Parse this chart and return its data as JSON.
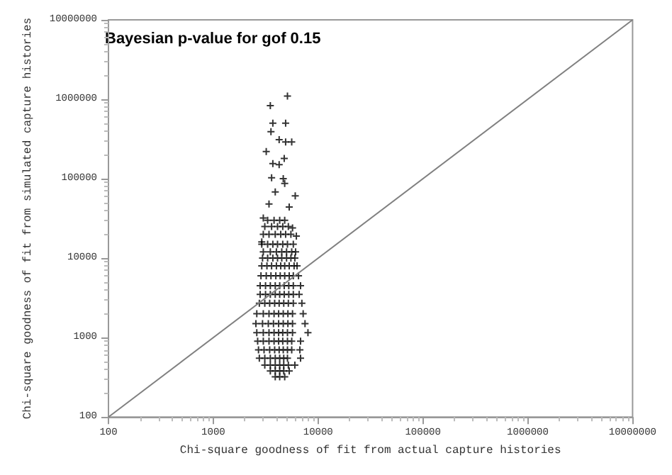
{
  "chart_data": {
    "type": "scatter",
    "xlabel": "Chi-square goodness of fit from actual capture histories",
    "ylabel": "Chi-square goodness of fit from simulated capture histories",
    "annotations": [
      "Bayesian p-value for gof 0.15"
    ],
    "log": "xy",
    "xlim": [
      100,
      10000000
    ],
    "ylim": [
      100,
      10000000
    ],
    "xticks": [
      100,
      1000,
      10000,
      100000,
      1000000,
      10000000
    ],
    "yticks": [
      100,
      1000,
      10000,
      100000,
      1000000,
      10000000
    ],
    "grid": false,
    "series": [
      {
        "marker": "cross",
        "color": "#000000",
        "x": [
          5100,
          3500,
          3700,
          3550,
          4900,
          4250,
          4900,
          5600,
          3200,
          4750,
          3700,
          4250,
          3600,
          4650,
          4800,
          3900,
          6050,
          3400,
          5300,
          3000,
          5700,
          2900,
          6200,
          3300,
          3800,
          4300,
          4800,
          3100,
          3600,
          4100,
          4600,
          5200,
          3000,
          3400,
          3900,
          4400,
          4900,
          5500,
          2900,
          3300,
          3700,
          4100,
          4600,
          5100,
          5800,
          3000,
          3500,
          4000,
          4500,
          5000,
          5600,
          6100,
          2950,
          3300,
          3700,
          4100,
          4500,
          5000,
          5500,
          6000,
          2900,
          3250,
          3600,
          4000,
          4400,
          4800,
          5300,
          5900,
          6300,
          2850,
          3200,
          3550,
          3950,
          4350,
          4800,
          5300,
          5800,
          6500,
          2800,
          3150,
          3500,
          3900,
          4300,
          4750,
          5250,
          5800,
          6800,
          2800,
          3150,
          3500,
          3900,
          4300,
          4750,
          5250,
          5800,
          6600,
          2750,
          3100,
          3450,
          3850,
          4250,
          4700,
          5200,
          5800,
          7000,
          2600,
          3000,
          3400,
          3800,
          4200,
          4650,
          5150,
          5700,
          7200,
          2550,
          2950,
          3350,
          3750,
          4200,
          4650,
          5150,
          5700,
          7500,
          2600,
          3000,
          3400,
          3800,
          4200,
          4600,
          5100,
          5700,
          8000,
          2650,
          3000,
          3400,
          3800,
          4200,
          4600,
          5100,
          5600,
          6800,
          2700,
          3050,
          3450,
          3850,
          4250,
          4650,
          5100,
          5600,
          6700,
          2750,
          3100,
          3500,
          3900,
          4300,
          4700,
          5100,
          6800,
          3100,
          3500,
          3900,
          4300,
          4700,
          5200,
          6000,
          3500,
          3900,
          4300,
          4700,
          5300,
          3900,
          4300,
          4800
        ],
        "values": [
          1100000,
          830000,
          500000,
          390000,
          500000,
          310000,
          290000,
          290000,
          220000,
          180000,
          155000,
          150000,
          103000,
          100000,
          87000,
          68000,
          61000,
          48000,
          44000,
          32000,
          24000,
          16000,
          19000,
          30000,
          30000,
          30000,
          30000,
          25000,
          25000,
          25000,
          25000,
          25000,
          20000,
          20000,
          20000,
          20000,
          20000,
          20000,
          15000,
          15000,
          15000,
          15000,
          15000,
          15000,
          15000,
          12000,
          12000,
          12000,
          12000,
          12000,
          12000,
          12000,
          10000,
          10000,
          10000,
          10000,
          10000,
          10000,
          10000,
          10000,
          8000,
          8000,
          8000,
          8000,
          8000,
          8000,
          8000,
          8000,
          8000,
          6000,
          6000,
          6000,
          6000,
          6000,
          6000,
          6000,
          6000,
          6000,
          4500,
          4500,
          4500,
          4500,
          4500,
          4500,
          4500,
          4500,
          4500,
          3500,
          3500,
          3500,
          3500,
          3500,
          3500,
          3500,
          3500,
          3500,
          2700,
          2700,
          2700,
          2700,
          2700,
          2700,
          2700,
          2700,
          2700,
          2000,
          2000,
          2000,
          2000,
          2000,
          2000,
          2000,
          2000,
          2000,
          1500,
          1500,
          1500,
          1500,
          1500,
          1500,
          1500,
          1500,
          1500,
          1150,
          1150,
          1150,
          1150,
          1150,
          1150,
          1150,
          1150,
          1150,
          900,
          900,
          900,
          900,
          900,
          900,
          900,
          900,
          900,
          700,
          700,
          700,
          700,
          700,
          700,
          700,
          700,
          700,
          550,
          550,
          550,
          550,
          550,
          550,
          550,
          550,
          450,
          450,
          450,
          450,
          450,
          450,
          450,
          380,
          380,
          380,
          380,
          380,
          320,
          320,
          320
        ]
      },
      {
        "type": "line",
        "marker": "none",
        "color": "#808080",
        "x": [
          100,
          10000000
        ],
        "values": [
          100,
          10000000
        ]
      }
    ]
  }
}
